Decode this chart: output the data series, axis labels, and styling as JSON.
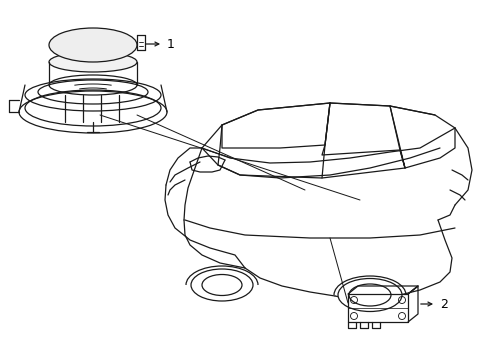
{
  "background_color": "#ffffff",
  "line_color": "#1a1a1a",
  "label_color": "#000000",
  "figure_width": 4.89,
  "figure_height": 3.6,
  "dpi": 100,
  "label1": "1",
  "label2": "2"
}
